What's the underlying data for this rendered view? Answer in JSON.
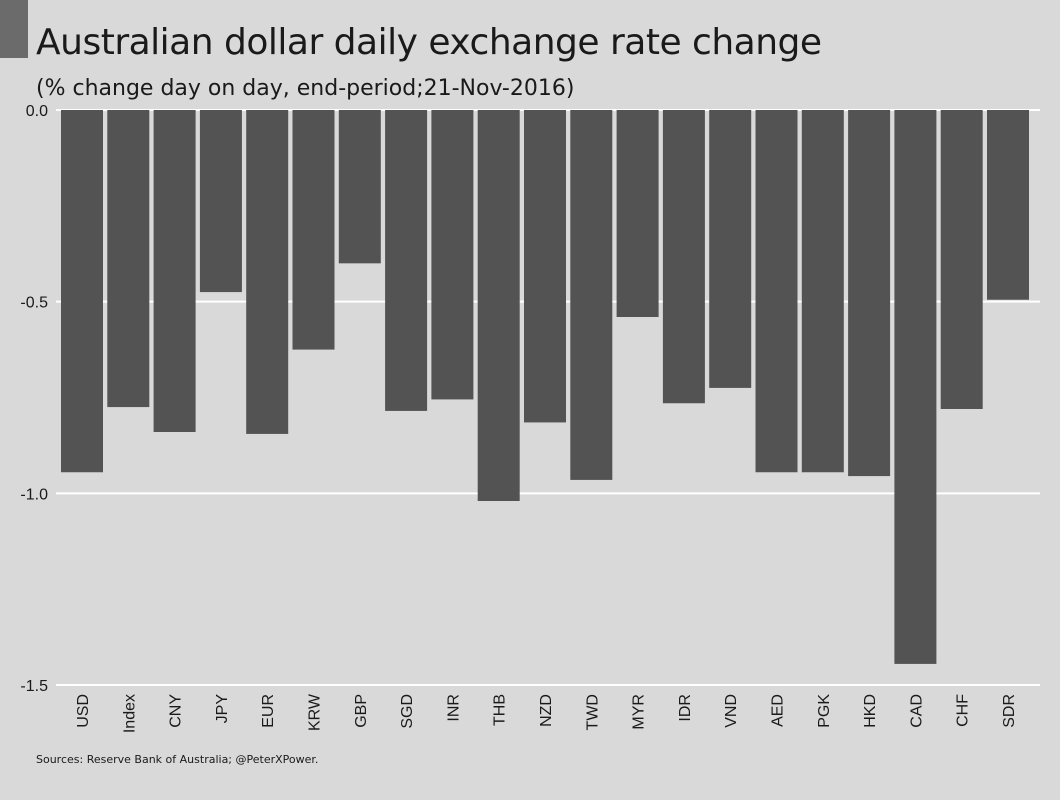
{
  "chart_data": {
    "type": "bar",
    "title": "Australian dollar daily exchange rate change",
    "subtitle": "(% change day on day, end-period;21-Nov-2016)",
    "source": "Sources: Reserve Bank of Australia;  @PeterXPower.",
    "categories": [
      "USD",
      "Index",
      "CNY",
      "JPY",
      "EUR",
      "KRW",
      "GBP",
      "SGD",
      "INR",
      "THB",
      "NZD",
      "TWD",
      "MYR",
      "IDR",
      "VND",
      "AED",
      "PGK",
      "HKD",
      "CAD",
      "CHF",
      "SDR"
    ],
    "values": [
      -0.945,
      -0.775,
      -0.84,
      -0.475,
      -0.845,
      -0.625,
      -0.4,
      -0.785,
      -0.755,
      -1.02,
      -0.815,
      -0.965,
      -0.54,
      -0.765,
      -0.725,
      -0.945,
      -0.945,
      -0.955,
      -1.445,
      -0.78,
      -0.495
    ],
    "ylim": [
      -1.5,
      0.0
    ],
    "yticks": [
      0.0,
      -0.5,
      -1.0,
      -1.5
    ],
    "ytick_labels": [
      "0.0",
      "-0.5",
      "-1.0",
      "-1.5"
    ],
    "xlabel": "",
    "ylabel": "",
    "grid": "horizontal",
    "bar_color": "#535353",
    "background_color": "#d9d9d9",
    "grid_color": "#ffffff"
  }
}
